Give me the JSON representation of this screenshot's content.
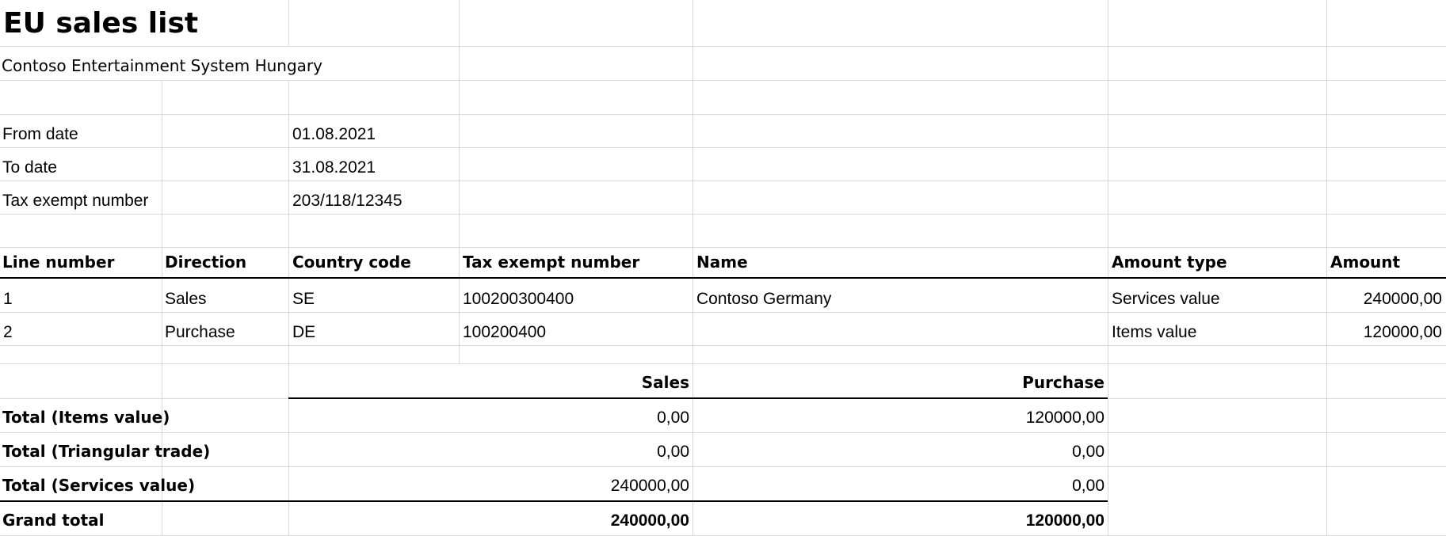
{
  "report": {
    "title": "EU sales list",
    "company": "Contoso Entertainment System Hungary"
  },
  "parameters": [
    {
      "label": "From date",
      "value": "01.08.2021"
    },
    {
      "label": "To date",
      "value": "31.08.2021"
    },
    {
      "label": "Tax exempt number",
      "value": "203/118/12345"
    }
  ],
  "table": {
    "columns": [
      "Line number",
      "Direction",
      "Country code",
      "Tax exempt number",
      "Name",
      "Amount type",
      "Amount"
    ],
    "rows": [
      [
        "1",
        "Sales",
        "SE",
        "100200300400",
        "Contoso Germany",
        "Services value",
        "240000,00"
      ],
      [
        "2",
        "Purchase",
        "DE",
        "100200400",
        "",
        "Items value",
        "120000,00"
      ]
    ]
  },
  "totals": {
    "headers": [
      "Sales",
      "Purchase"
    ],
    "rows": [
      {
        "label": "Total (Items value)",
        "sales": "0,00",
        "purchase": "120000,00"
      },
      {
        "label": "Total (Triangular trade)",
        "sales": "0,00",
        "purchase": "0,00"
      },
      {
        "label": "Total (Services value)",
        "sales": "240000,00",
        "purchase": "0,00"
      }
    ],
    "grand": {
      "label": "Grand total",
      "sales": "240000,00",
      "purchase": "120000,00"
    }
  }
}
